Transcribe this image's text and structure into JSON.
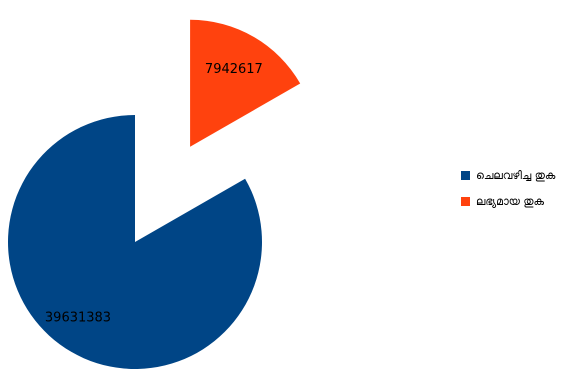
{
  "chart_data": {
    "type": "pie",
    "exploded": true,
    "slices": [
      {
        "label": "ചെലവഴിച്ച തുക",
        "value": 39631383,
        "color": "#004586"
      },
      {
        "label": "ലഭ്യമായ തുക",
        "value": 7942617,
        "color": "#ff420e"
      }
    ],
    "data_labels": [
      "39631383",
      "7942617"
    ],
    "legend": {
      "position": "right"
    }
  }
}
